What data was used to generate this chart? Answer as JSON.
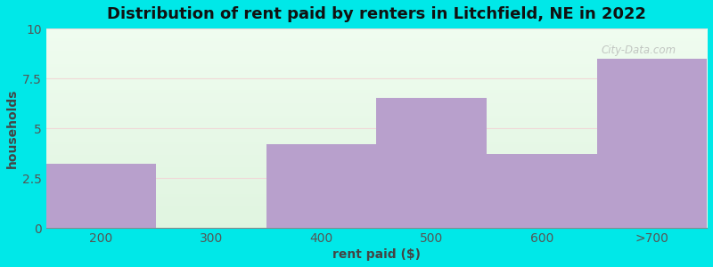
{
  "title": "Distribution of rent paid by renters in Litchfield, NE in 2022",
  "categories": [
    "200",
    "300",
    "400",
    "500",
    "600",
    ">700"
  ],
  "values": [
    3.2,
    0,
    4.2,
    6.5,
    3.7,
    8.5
  ],
  "bar_color": "#b8a0cc",
  "xlabel": "rent paid ($)",
  "ylabel": "households",
  "ylim": [
    0,
    10
  ],
  "yticks": [
    0,
    2.5,
    5,
    7.5,
    10
  ],
  "outer_bg": "#00e8e8",
  "title_fontsize": 13,
  "label_fontsize": 10,
  "tick_fontsize": 10,
  "watermark": "City-Data.com"
}
